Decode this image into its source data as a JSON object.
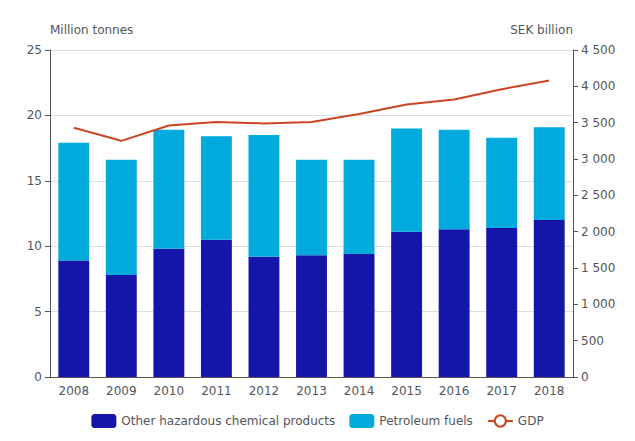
{
  "chart_data": {
    "type": "bar",
    "stacked": true,
    "categories": [
      "2008",
      "2009",
      "2010",
      "2011",
      "2012",
      "2013",
      "2014",
      "2015",
      "2016",
      "2017",
      "2018"
    ],
    "ylabel": "Million tonnes",
    "y2label": "SEK billion",
    "ylim": [
      0,
      25
    ],
    "yticks": [
      0,
      5,
      10,
      15,
      20,
      25
    ],
    "y2lim": [
      0,
      4500
    ],
    "y2ticks": [
      0,
      500,
      {
        "value": 1000,
        "label": "1 000"
      },
      {
        "value": 1500,
        "label": "1 500"
      },
      {
        "value": 2000,
        "label": "2 000"
      },
      {
        "value": 2500,
        "label": "2 500"
      },
      {
        "value": 3000,
        "label": "3 000"
      },
      {
        "value": 3500,
        "label": "3 500"
      },
      {
        "value": 4000,
        "label": "4 000"
      },
      {
        "value": 4500,
        "label": "4 500"
      }
    ],
    "grid": true,
    "legend": "bottom",
    "series": [
      {
        "name": "Other hazardous chemical products",
        "type": "bar",
        "color": "#1515aa",
        "values": [
          8.9,
          7.8,
          9.8,
          10.5,
          9.2,
          9.3,
          9.4,
          11.1,
          11.3,
          11.4,
          12.0
        ]
      },
      {
        "name": "Petroleum fuels",
        "type": "bar",
        "color": "#00aadd",
        "values": [
          9.0,
          8.8,
          9.1,
          7.9,
          9.3,
          7.3,
          7.2,
          7.9,
          7.6,
          6.9,
          7.1
        ]
      },
      {
        "name": "GDP",
        "type": "line",
        "axis": "y2",
        "color": "#cc4422",
        "values": [
          3430,
          3250,
          3460,
          3510,
          3490,
          3510,
          3620,
          3750,
          3820,
          3960,
          4080
        ]
      }
    ]
  }
}
